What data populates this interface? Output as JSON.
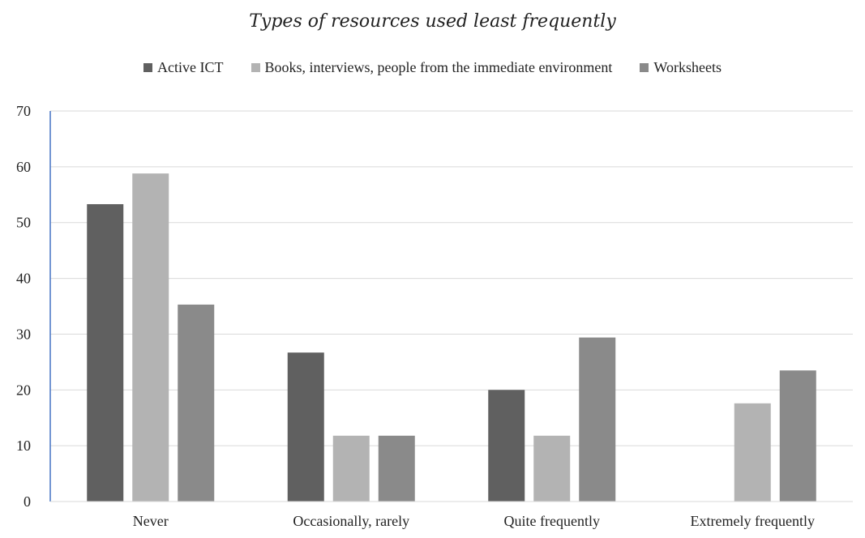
{
  "chart_data": {
    "type": "bar",
    "title": "Types of resources used least frequently",
    "categories": [
      "Never",
      "Occasionally, rarely",
      "Quite frequently",
      "Extremely frequently"
    ],
    "series": [
      {
        "name": "Active ICT",
        "color": "#606060",
        "values": [
          53.3,
          26.7,
          20.0,
          0
        ]
      },
      {
        "name": "Books, interviews, people from the immediate environment",
        "color": "#b3b3b3",
        "values": [
          58.8,
          11.8,
          11.8,
          17.6
        ]
      },
      {
        "name": "Worksheets",
        "color": "#8a8a8a",
        "values": [
          35.3,
          11.8,
          29.4,
          23.5
        ]
      }
    ],
    "yticks": [
      "0",
      "10",
      "20",
      "30",
      "40",
      "50",
      "60",
      "70"
    ],
    "ylim": [
      0,
      70
    ],
    "grid": true,
    "legend_position": "top"
  }
}
